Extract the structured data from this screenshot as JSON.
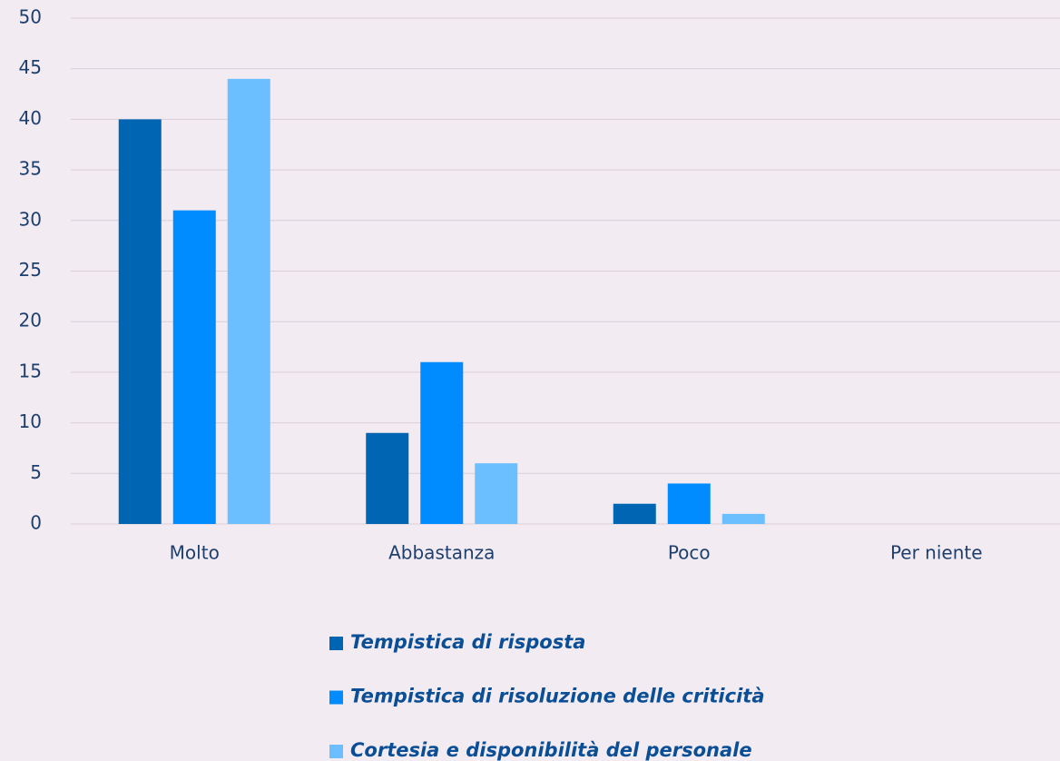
{
  "chart_data": {
    "type": "bar",
    "categories": [
      "Molto",
      "Abbastanza",
      "Poco",
      "Per niente"
    ],
    "series": [
      {
        "name": "Tempistica di risposta",
        "color": "#0066b3",
        "values": [
          40,
          9,
          2,
          0
        ]
      },
      {
        "name": "Tempistica di risoluzione delle criticità",
        "color": "#008cff",
        "values": [
          31,
          16,
          4,
          0
        ]
      },
      {
        "name": "Cortesia e disponibilità del personale",
        "color": "#6bbfff",
        "values": [
          44,
          6,
          1,
          0
        ]
      }
    ],
    "ylim": [
      0,
      50
    ],
    "yticks": [
      0,
      5,
      10,
      15,
      20,
      25,
      30,
      35,
      40,
      45,
      50
    ],
    "grid": true,
    "legend": "bottom"
  }
}
